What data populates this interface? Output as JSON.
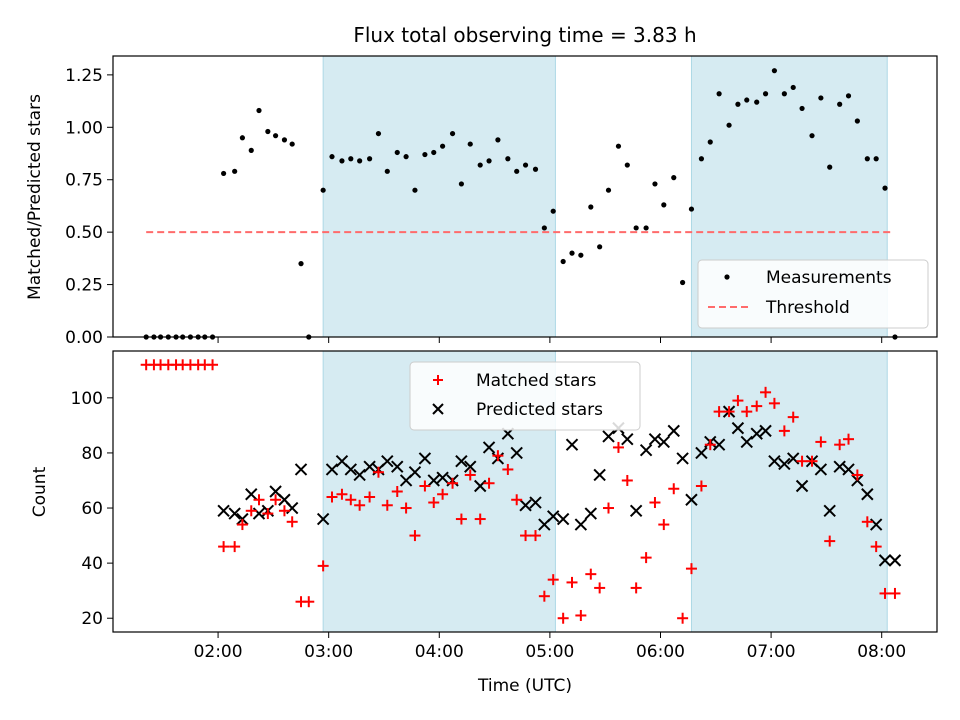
{
  "chart_data": [
    {
      "type": "scatter",
      "title": "Flux total observing time = 3.83 h",
      "xlabel": "",
      "ylabel": "Matched/Predicted stars",
      "ylim": [
        0,
        1.34
      ],
      "yticks": [
        0,
        0.25,
        0.5,
        0.75,
        1.0,
        1.25
      ],
      "ytick_labels": [
        "0.00",
        "0.25",
        "0.50",
        "0.75",
        "1.00",
        "1.25"
      ],
      "xlim": [
        1.05,
        8.5
      ],
      "xticks": [
        2,
        3,
        4,
        5,
        6,
        7,
        8
      ],
      "shaded_intervals": [
        [
          2.95,
          5.05
        ],
        [
          6.28,
          8.05
        ]
      ],
      "threshold": {
        "value": 0.5,
        "x_range": [
          1.35,
          8.1
        ],
        "color": "#ff6b6b"
      },
      "legend": {
        "placement": "lower-right",
        "entries": [
          "Measurements",
          "Threshold"
        ]
      },
      "series": [
        {
          "name": "Measurements",
          "marker": "dot",
          "color": "#000000",
          "x": [
            1.35,
            1.42,
            1.48,
            1.55,
            1.62,
            1.68,
            1.75,
            1.82,
            1.88,
            1.95,
            2.05,
            2.15,
            2.22,
            2.3,
            2.37,
            2.45,
            2.52,
            2.6,
            2.67,
            2.75,
            2.82,
            2.95,
            3.03,
            3.12,
            3.2,
            3.28,
            3.37,
            3.45,
            3.53,
            3.62,
            3.7,
            3.78,
            3.87,
            3.95,
            4.03,
            4.12,
            4.2,
            4.28,
            4.37,
            4.45,
            4.53,
            4.62,
            4.7,
            4.78,
            4.87,
            4.95,
            5.03,
            5.12,
            5.2,
            5.28,
            5.37,
            5.45,
            5.53,
            5.62,
            5.7,
            5.78,
            5.87,
            5.95,
            6.03,
            6.12,
            6.2,
            6.28,
            6.37,
            6.45,
            6.53,
            6.62,
            6.7,
            6.78,
            6.87,
            6.95,
            7.03,
            7.12,
            7.2,
            7.28,
            7.37,
            7.45,
            7.53,
            7.62,
            7.7,
            7.78,
            7.87,
            7.95,
            8.03,
            8.12
          ],
          "y": [
            0,
            0,
            0,
            0,
            0,
            0,
            0,
            0,
            0,
            0,
            0.78,
            0.79,
            0.95,
            0.89,
            1.08,
            0.98,
            0.96,
            0.94,
            0.92,
            0.35,
            0,
            0.7,
            0.86,
            0.84,
            0.85,
            0.84,
            0.85,
            0.97,
            0.79,
            0.88,
            0.86,
            0.7,
            0.87,
            0.88,
            0.91,
            0.97,
            0.73,
            0.92,
            0.82,
            0.84,
            0.94,
            0.85,
            0.79,
            0.82,
            0.8,
            0.52,
            0.6,
            0.36,
            0.4,
            0.39,
            0.62,
            0.43,
            0.7,
            0.91,
            0.82,
            0.52,
            0.52,
            0.73,
            0.63,
            0.76,
            0.26,
            0.61,
            0.85,
            0.93,
            1.16,
            1.01,
            1.11,
            1.13,
            1.12,
            1.16,
            1.27,
            1.16,
            1.19,
            1.09,
            0.96,
            1.14,
            0.81,
            1.11,
            1.15,
            1.03,
            0.85,
            0.85,
            0.71,
            0
          ]
        }
      ]
    },
    {
      "type": "scatter",
      "title": "",
      "xlabel": "Time (UTC)",
      "ylabel": "Count",
      "ylim": [
        15,
        117
      ],
      "yticks": [
        20,
        40,
        60,
        80,
        100
      ],
      "ytick_labels": [
        "20",
        "40",
        "60",
        "80",
        "100"
      ],
      "xlim": [
        1.05,
        8.5
      ],
      "xticks": [
        2,
        3,
        4,
        5,
        6,
        7,
        8
      ],
      "xtick_labels": [
        "02:00",
        "03:00",
        "04:00",
        "05:00",
        "06:00",
        "07:00",
        "08:00"
      ],
      "shaded_intervals": [
        [
          2.95,
          5.05
        ],
        [
          6.28,
          8.05
        ]
      ],
      "legend": {
        "placement": "upper-center",
        "entries": [
          "Matched stars",
          "Predicted stars"
        ]
      },
      "series": [
        {
          "name": "Matched stars",
          "marker": "plus",
          "color": "#ff0000",
          "x": [
            1.35,
            1.42,
            1.48,
            1.55,
            1.62,
            1.68,
            1.75,
            1.82,
            1.88,
            1.95,
            2.05,
            2.15,
            2.22,
            2.3,
            2.37,
            2.45,
            2.52,
            2.6,
            2.67,
            2.75,
            2.82,
            2.95,
            3.03,
            3.12,
            3.2,
            3.28,
            3.37,
            3.45,
            3.53,
            3.62,
            3.7,
            3.78,
            3.87,
            3.95,
            4.03,
            4.12,
            4.2,
            4.28,
            4.37,
            4.45,
            4.53,
            4.62,
            4.7,
            4.78,
            4.87,
            4.95,
            5.03,
            5.12,
            5.2,
            5.28,
            5.37,
            5.45,
            5.53,
            5.62,
            5.7,
            5.78,
            5.87,
            5.95,
            6.03,
            6.12,
            6.2,
            6.28,
            6.37,
            6.45,
            6.53,
            6.62,
            6.7,
            6.78,
            6.87,
            6.95,
            7.03,
            7.12,
            7.2,
            7.28,
            7.37,
            7.45,
            7.53,
            7.62,
            7.7,
            7.78,
            7.87,
            7.95,
            8.03,
            8.12
          ],
          "y": [
            112,
            112,
            112,
            112,
            112,
            112,
            112,
            112,
            112,
            112,
            46,
            46,
            54,
            59,
            63,
            58,
            63,
            59,
            55,
            26,
            26,
            39,
            64,
            65,
            63,
            61,
            64,
            73,
            61,
            66,
            60,
            50,
            68,
            62,
            65,
            69,
            56,
            72,
            56,
            69,
            79,
            74,
            63,
            50,
            50,
            28,
            34,
            20,
            33,
            21,
            36,
            31,
            60,
            82,
            70,
            31,
            42,
            62,
            54,
            67,
            20,
            38,
            68,
            83,
            95,
            95,
            99,
            95,
            97,
            102,
            98,
            88,
            93,
            77,
            77,
            84,
            48,
            83,
            85,
            72,
            55,
            46,
            29,
            29
          ]
        },
        {
          "name": "Predicted stars",
          "marker": "x",
          "color": "#000000",
          "x": [
            2.05,
            2.15,
            2.22,
            2.3,
            2.37,
            2.45,
            2.52,
            2.6,
            2.67,
            2.75,
            2.95,
            3.03,
            3.12,
            3.2,
            3.28,
            3.37,
            3.45,
            3.53,
            3.62,
            3.7,
            3.78,
            3.87,
            3.95,
            4.03,
            4.12,
            4.2,
            4.28,
            4.37,
            4.45,
            4.53,
            4.62,
            4.7,
            4.78,
            4.87,
            4.95,
            5.03,
            5.12,
            5.2,
            5.28,
            5.37,
            5.45,
            5.53,
            5.62,
            5.7,
            5.78,
            5.87,
            5.95,
            6.03,
            6.12,
            6.2,
            6.28,
            6.37,
            6.45,
            6.53,
            6.62,
            6.7,
            6.78,
            6.87,
            6.95,
            7.03,
            7.12,
            7.2,
            7.28,
            7.37,
            7.45,
            7.53,
            7.62,
            7.7,
            7.78,
            7.87,
            7.95,
            8.03,
            8.12
          ],
          "y": [
            59,
            58,
            56,
            65,
            58,
            59,
            66,
            63,
            60,
            74,
            56,
            74,
            77,
            74,
            72,
            75,
            74,
            77,
            75,
            70,
            73,
            78,
            70,
            71,
            70,
            77,
            75,
            68,
            82,
            78,
            87,
            80,
            61,
            62,
            54,
            57,
            56,
            83,
            54,
            58,
            72,
            86,
            89,
            85,
            59,
            81,
            85,
            84,
            88,
            78,
            63,
            80,
            84,
            83,
            95,
            89,
            84,
            87,
            88,
            77,
            76,
            78,
            68,
            77,
            74,
            59,
            75,
            74,
            70,
            65,
            54,
            41,
            41
          ]
        }
      ]
    }
  ]
}
